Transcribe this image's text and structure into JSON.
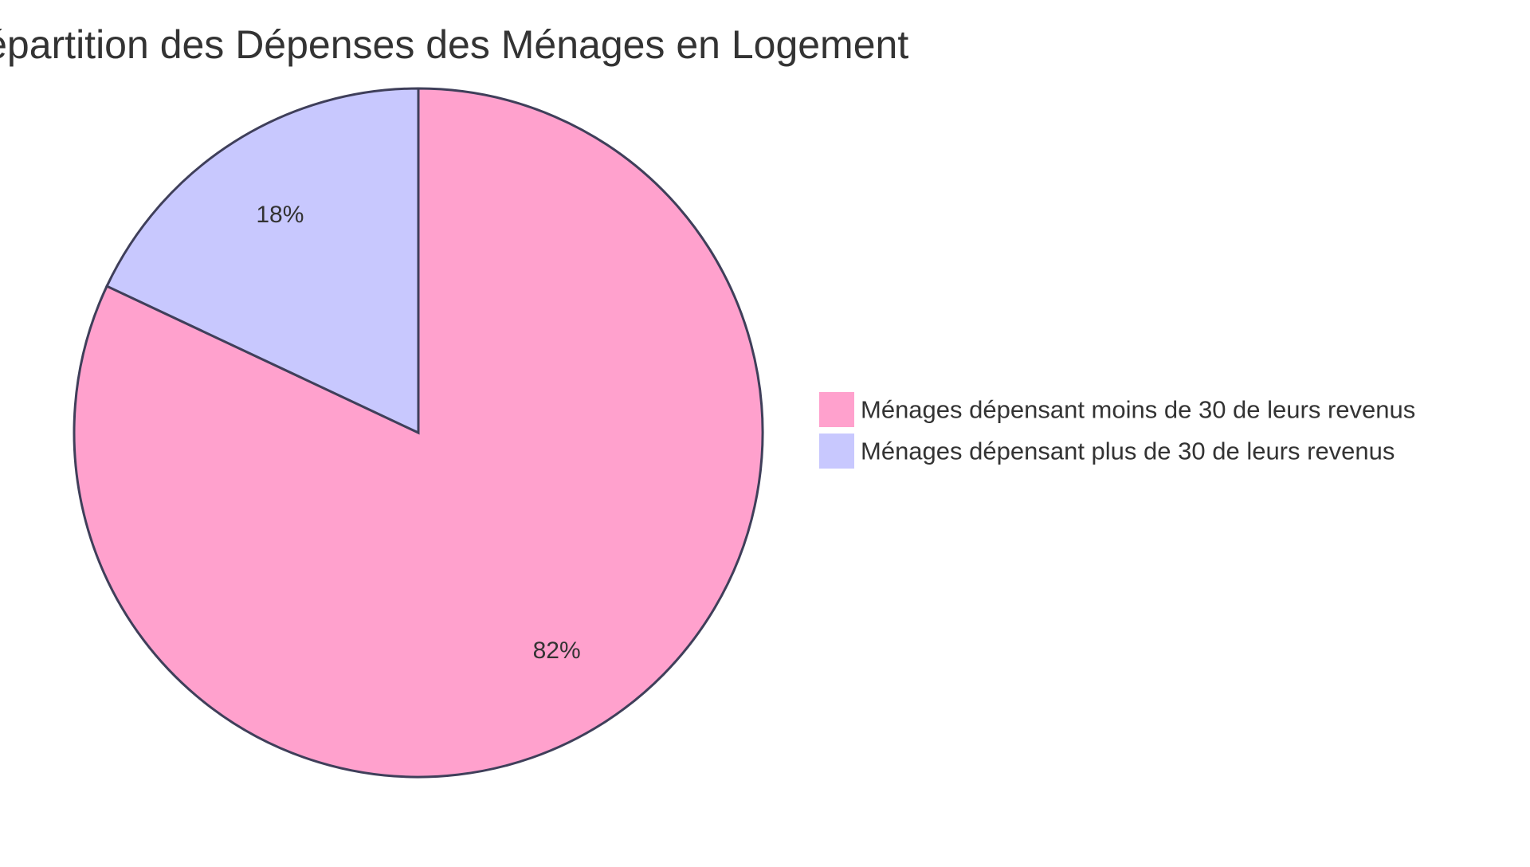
{
  "chart_data": {
    "type": "pie",
    "title": "Répartition des Dépenses des Ménages en Logement",
    "slices": [
      {
        "label": "Ménages dépensant moins de 30 de leurs revenus",
        "value": 82,
        "display": "82%",
        "color": "#FFA1CD"
      },
      {
        "label": "Ménages dépensant plus de 30 de leurs revenus",
        "value": 18,
        "display": "18%",
        "color": "#C8C8FE"
      }
    ],
    "legend_position": "right",
    "stroke_color": "#3F3F5A"
  }
}
